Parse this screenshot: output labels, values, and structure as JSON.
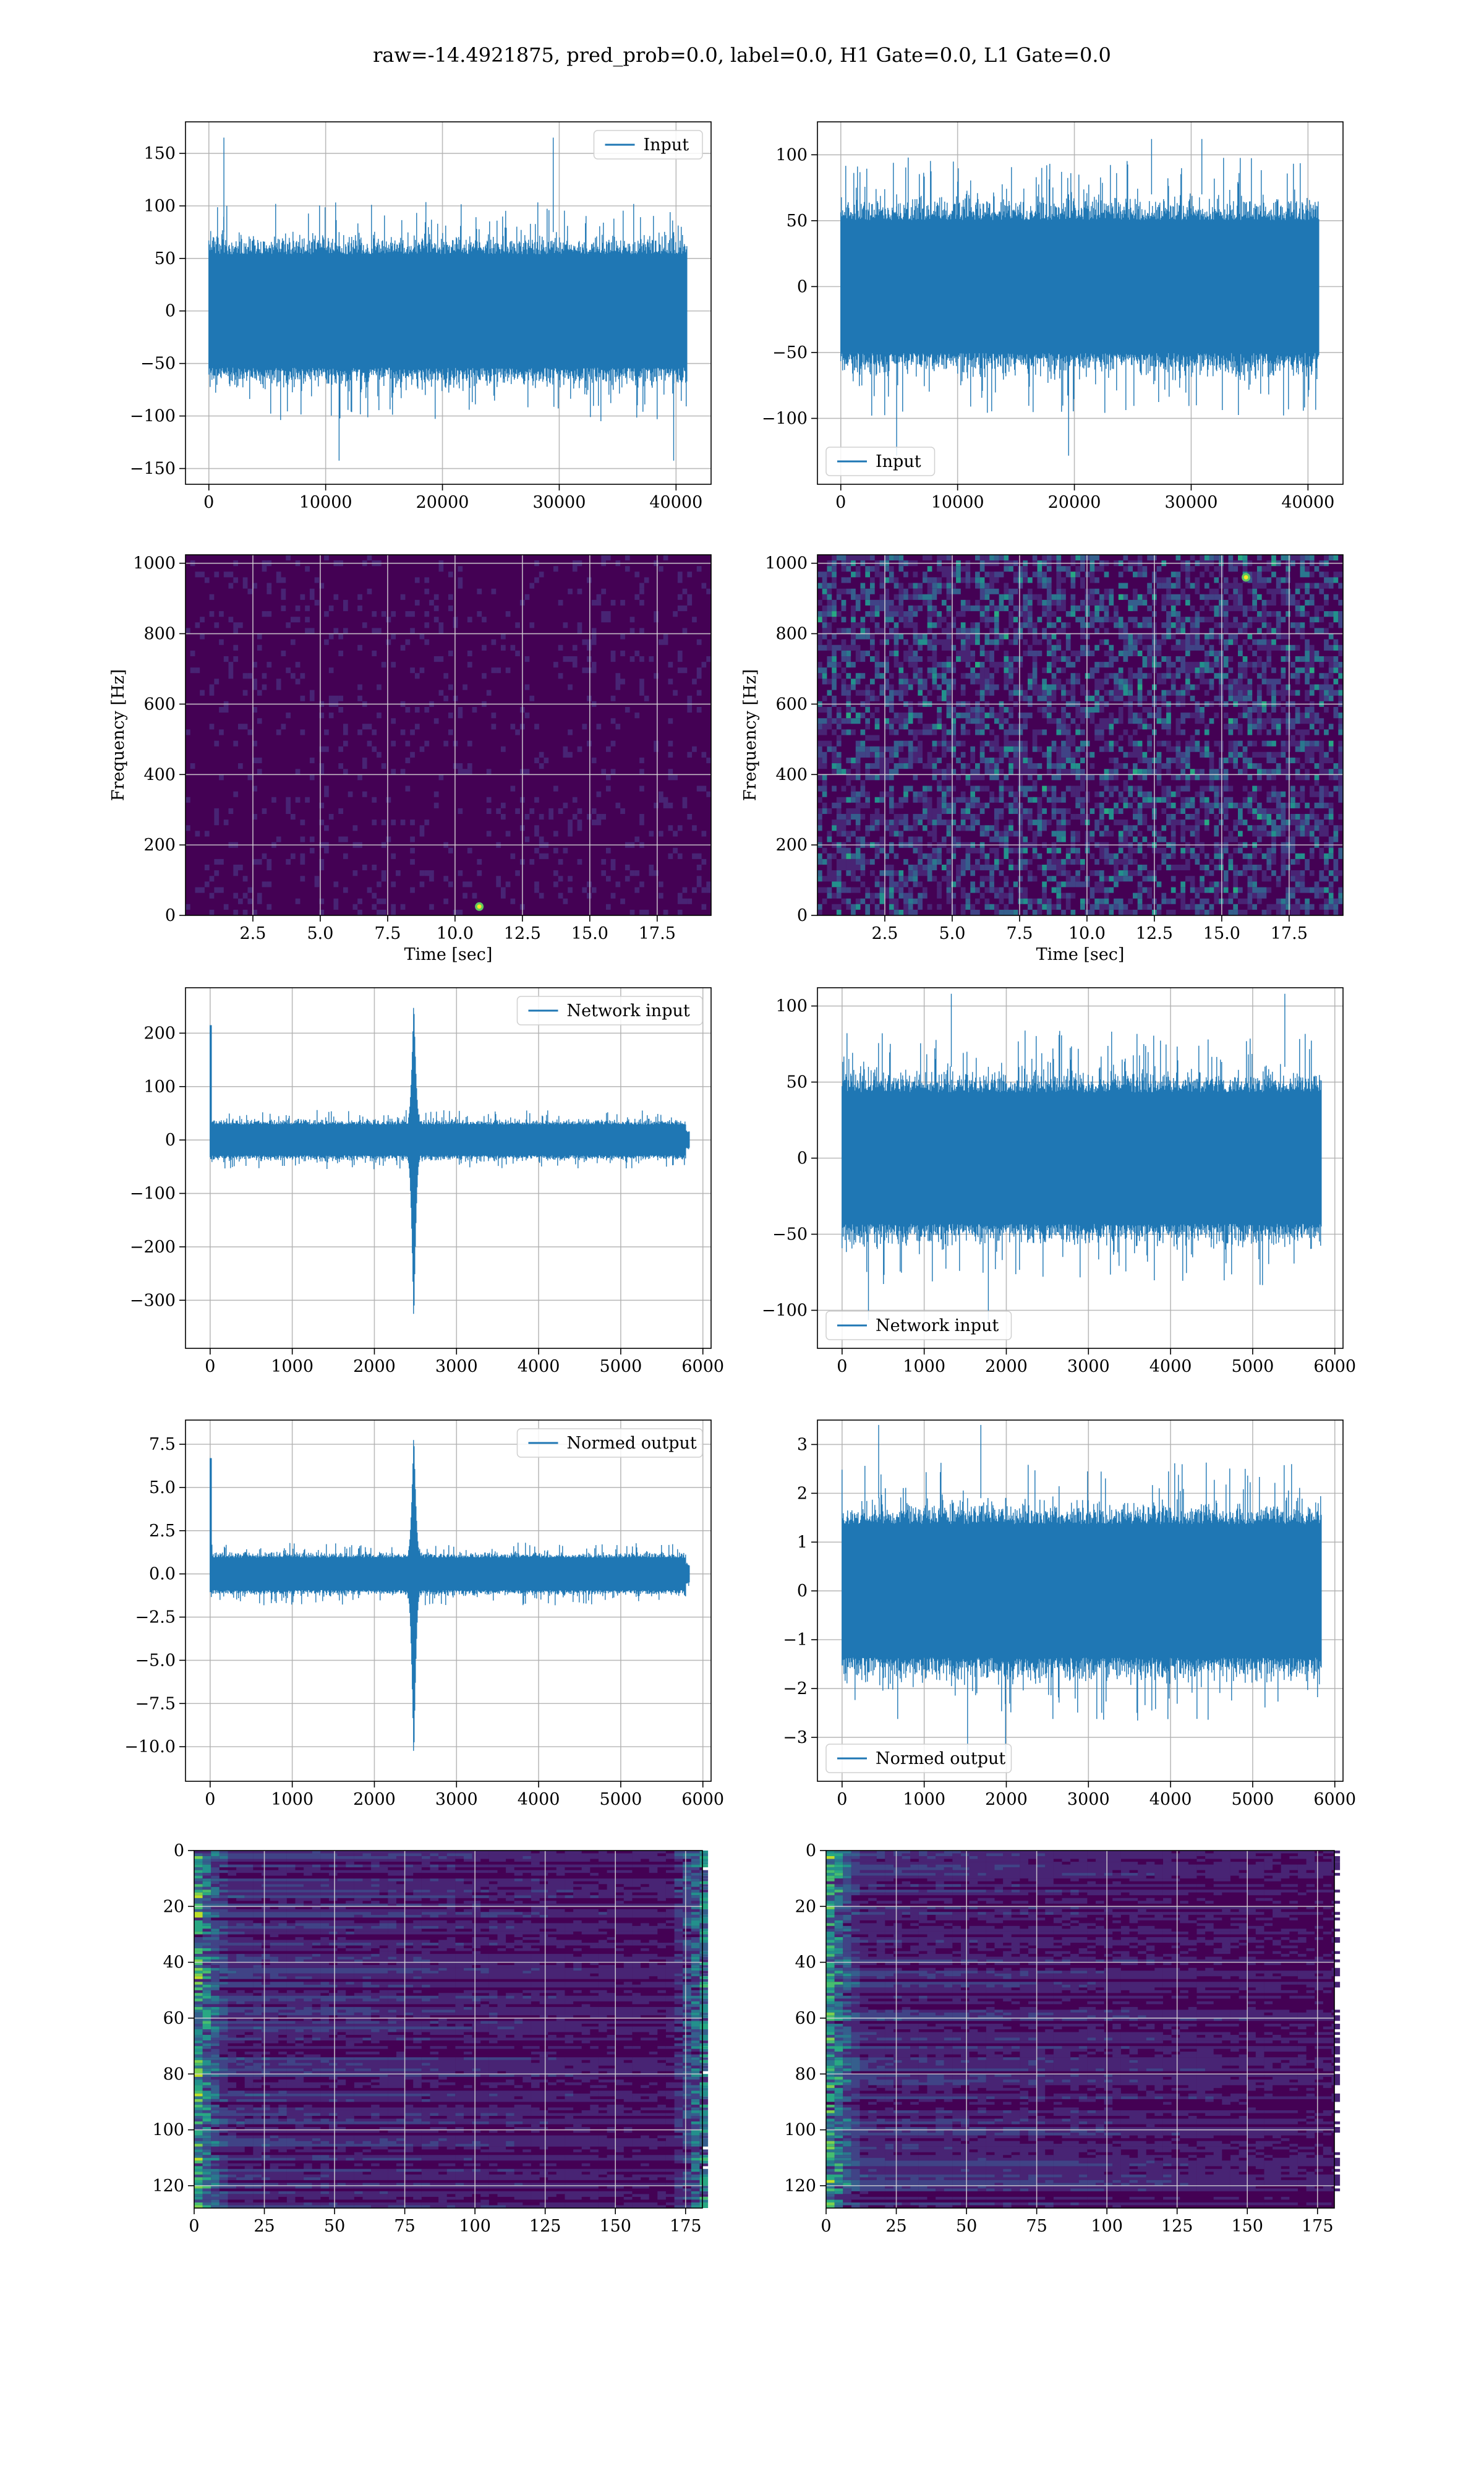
{
  "figure": {
    "title": "raw=-14.4921875, pred_prob=0.0, label=0.0, H1 Gate=0.0, L1 Gate=0.0"
  },
  "colors": {
    "line": "#1f77b4",
    "viridis_dark": "#440154",
    "grid": "#b0b0b0"
  },
  "chart_data": [
    {
      "id": "input-left",
      "type": "line",
      "kind": "noise",
      "series": [
        {
          "name": "Input"
        }
      ],
      "legend": "upper right",
      "xlim": [
        -2000,
        43000
      ],
      "ylim": [
        -165,
        180
      ],
      "xticks": [
        0,
        10000,
        20000,
        30000,
        40000
      ],
      "xtick_labels": [
        "0",
        "10000",
        "20000",
        "30000",
        "40000"
      ],
      "yticks": [
        -150,
        -100,
        -50,
        0,
        50,
        100,
        150
      ],
      "ytick_labels": [
        "−150",
        "−100",
        "−50",
        "0",
        "50",
        "100",
        "150"
      ],
      "signal": {
        "x_start": 0,
        "x_end": 40960,
        "amplitude": 75,
        "spike_max": 165,
        "spike_min": -150
      },
      "grid": true
    },
    {
      "id": "input-right",
      "type": "line",
      "kind": "noise",
      "series": [
        {
          "name": "Input"
        }
      ],
      "legend": "lower left",
      "xlim": [
        -2000,
        43000
      ],
      "ylim": [
        -150,
        125
      ],
      "xticks": [
        0,
        10000,
        20000,
        30000,
        40000
      ],
      "xtick_labels": [
        "0",
        "10000",
        "20000",
        "30000",
        "40000"
      ],
      "yticks": [
        -100,
        -50,
        0,
        50,
        100
      ],
      "ytick_labels": [
        "−100",
        "−50",
        "0",
        "50",
        "100"
      ],
      "signal": {
        "x_start": 0,
        "x_end": 40960,
        "amplitude": 70,
        "spike_max": 112,
        "spike_min": -135
      },
      "grid": true
    },
    {
      "id": "spectrogram-left",
      "type": "heatmap",
      "kind": "spectrogram",
      "xlabel": "Time [sec]",
      "ylabel": "Frequency [Hz]",
      "xlim": [
        0,
        19.5
      ],
      "ylim": [
        0,
        1024
      ],
      "xticks": [
        2.5,
        5.0,
        7.5,
        10.0,
        12.5,
        15.0,
        17.5
      ],
      "xtick_labels": [
        "2.5",
        "5.0",
        "7.5",
        "10.0",
        "12.5",
        "15.0",
        "17.5"
      ],
      "yticks": [
        0,
        200,
        400,
        600,
        800,
        1000
      ],
      "ytick_labels": [
        "0",
        "200",
        "400",
        "600",
        "800",
        "1000"
      ],
      "intensity": 0.08,
      "hot_spots": [
        {
          "t": 10.9,
          "f": 25
        }
      ],
      "grid": true
    },
    {
      "id": "spectrogram-right",
      "type": "heatmap",
      "kind": "spectrogram",
      "xlabel": "Time [sec]",
      "ylabel": "Frequency [Hz]",
      "xlim": [
        0,
        19.5
      ],
      "ylim": [
        0,
        1024
      ],
      "xticks": [
        2.5,
        5.0,
        7.5,
        10.0,
        12.5,
        15.0,
        17.5
      ],
      "xtick_labels": [
        "2.5",
        "5.0",
        "7.5",
        "10.0",
        "12.5",
        "15.0",
        "17.5"
      ],
      "yticks": [
        0,
        200,
        400,
        600,
        800,
        1000
      ],
      "ytick_labels": [
        "0",
        "200",
        "400",
        "600",
        "800",
        "1000"
      ],
      "intensity": 0.3,
      "hot_spots": [
        {
          "t": 15.9,
          "f": 960
        }
      ],
      "grid": true
    },
    {
      "id": "network-left",
      "type": "line",
      "kind": "glitch",
      "series": [
        {
          "name": "Network input"
        }
      ],
      "legend": "upper right",
      "xlim": [
        -300,
        6100
      ],
      "ylim": [
        -390,
        285
      ],
      "xticks": [
        0,
        1000,
        2000,
        3000,
        4000,
        5000,
        6000
      ],
      "xtick_labels": [
        "0",
        "1000",
        "2000",
        "3000",
        "4000",
        "5000",
        "6000"
      ],
      "yticks": [
        -300,
        -200,
        -100,
        0,
        100,
        200
      ],
      "ytick_labels": [
        "−300",
        "−200",
        "−100",
        "0",
        "100",
        "200"
      ],
      "signal": {
        "x_start": 0,
        "x_end": 5840,
        "amplitude": 40,
        "start_spike": 215,
        "glitch_x": 2480,
        "glitch_max": 265,
        "glitch_min": -350
      },
      "grid": true
    },
    {
      "id": "network-right",
      "type": "line",
      "kind": "noise",
      "series": [
        {
          "name": "Network input"
        }
      ],
      "legend": "lower left",
      "xlim": [
        -300,
        6100
      ],
      "ylim": [
        -125,
        112
      ],
      "xticks": [
        0,
        1000,
        2000,
        3000,
        4000,
        5000,
        6000
      ],
      "xtick_labels": [
        "0",
        "1000",
        "2000",
        "3000",
        "4000",
        "5000",
        "6000"
      ],
      "yticks": [
        -100,
        -50,
        0,
        50,
        100
      ],
      "ytick_labels": [
        "−100",
        "−50",
        "0",
        "50",
        "100"
      ],
      "signal": {
        "x_start": 0,
        "x_end": 5840,
        "amplitude": 60,
        "spike_max": 108,
        "spike_min": -112
      },
      "grid": true
    },
    {
      "id": "normed-left",
      "type": "line",
      "kind": "glitch",
      "series": [
        {
          "name": "Normed output"
        }
      ],
      "legend": "upper right",
      "xlim": [
        -300,
        6100
      ],
      "ylim": [
        -12,
        8.9
      ],
      "xticks": [
        0,
        1000,
        2000,
        3000,
        4000,
        5000,
        6000
      ],
      "xtick_labels": [
        "0",
        "1000",
        "2000",
        "3000",
        "4000",
        "5000",
        "6000"
      ],
      "yticks": [
        -10,
        -7.5,
        -5,
        -2.5,
        0,
        2.5,
        5,
        7.5
      ],
      "ytick_labels": [
        "−10.0",
        "−7.5",
        "−5.0",
        "−2.5",
        "0.0",
        "2.5",
        "5.0",
        "7.5"
      ],
      "signal": {
        "x_start": 0,
        "x_end": 5840,
        "amplitude": 1.3,
        "start_spike": 6.7,
        "glitch_x": 2480,
        "glitch_max": 8.3,
        "glitch_min": -11
      },
      "grid": true
    },
    {
      "id": "normed-right",
      "type": "line",
      "kind": "noise",
      "series": [
        {
          "name": "Normed output"
        }
      ],
      "legend": "lower left",
      "xlim": [
        -300,
        6100
      ],
      "ylim": [
        -3.9,
        3.5
      ],
      "xticks": [
        0,
        1000,
        2000,
        3000,
        4000,
        5000,
        6000
      ],
      "xtick_labels": [
        "0",
        "1000",
        "2000",
        "3000",
        "4000",
        "5000",
        "6000"
      ],
      "yticks": [
        -3,
        -2,
        -1,
        0,
        1,
        2,
        3
      ],
      "ytick_labels": [
        "−3",
        "−2",
        "−1",
        "0",
        "1",
        "2",
        "3"
      ],
      "signal": {
        "x_start": 0,
        "x_end": 5840,
        "amplitude": 1.9,
        "spike_max": 3.4,
        "spike_min": -3.5
      },
      "grid": true
    },
    {
      "id": "embedding-left",
      "type": "heatmap",
      "kind": "embedding",
      "xlim": [
        0,
        181
      ],
      "ylim": [
        128,
        0
      ],
      "xticks": [
        0,
        25,
        50,
        75,
        100,
        125,
        150,
        175
      ],
      "xtick_labels": [
        "0",
        "25",
        "50",
        "75",
        "100",
        "125",
        "150",
        "175"
      ],
      "yticks": [
        0,
        20,
        40,
        60,
        80,
        100,
        120
      ],
      "ytick_labels": [
        "0",
        "20",
        "40",
        "60",
        "80",
        "100",
        "120"
      ],
      "bright_edges": "both",
      "grid": true
    },
    {
      "id": "embedding-right",
      "type": "heatmap",
      "kind": "embedding",
      "xlim": [
        0,
        181
      ],
      "ylim": [
        128,
        0
      ],
      "xticks": [
        0,
        25,
        50,
        75,
        100,
        125,
        150,
        175
      ],
      "xtick_labels": [
        "0",
        "25",
        "50",
        "75",
        "100",
        "125",
        "150",
        "175"
      ],
      "yticks": [
        0,
        20,
        40,
        60,
        80,
        100,
        120
      ],
      "ytick_labels": [
        "0",
        "20",
        "40",
        "60",
        "80",
        "100",
        "120"
      ],
      "bright_edges": "left",
      "grid": true
    }
  ]
}
